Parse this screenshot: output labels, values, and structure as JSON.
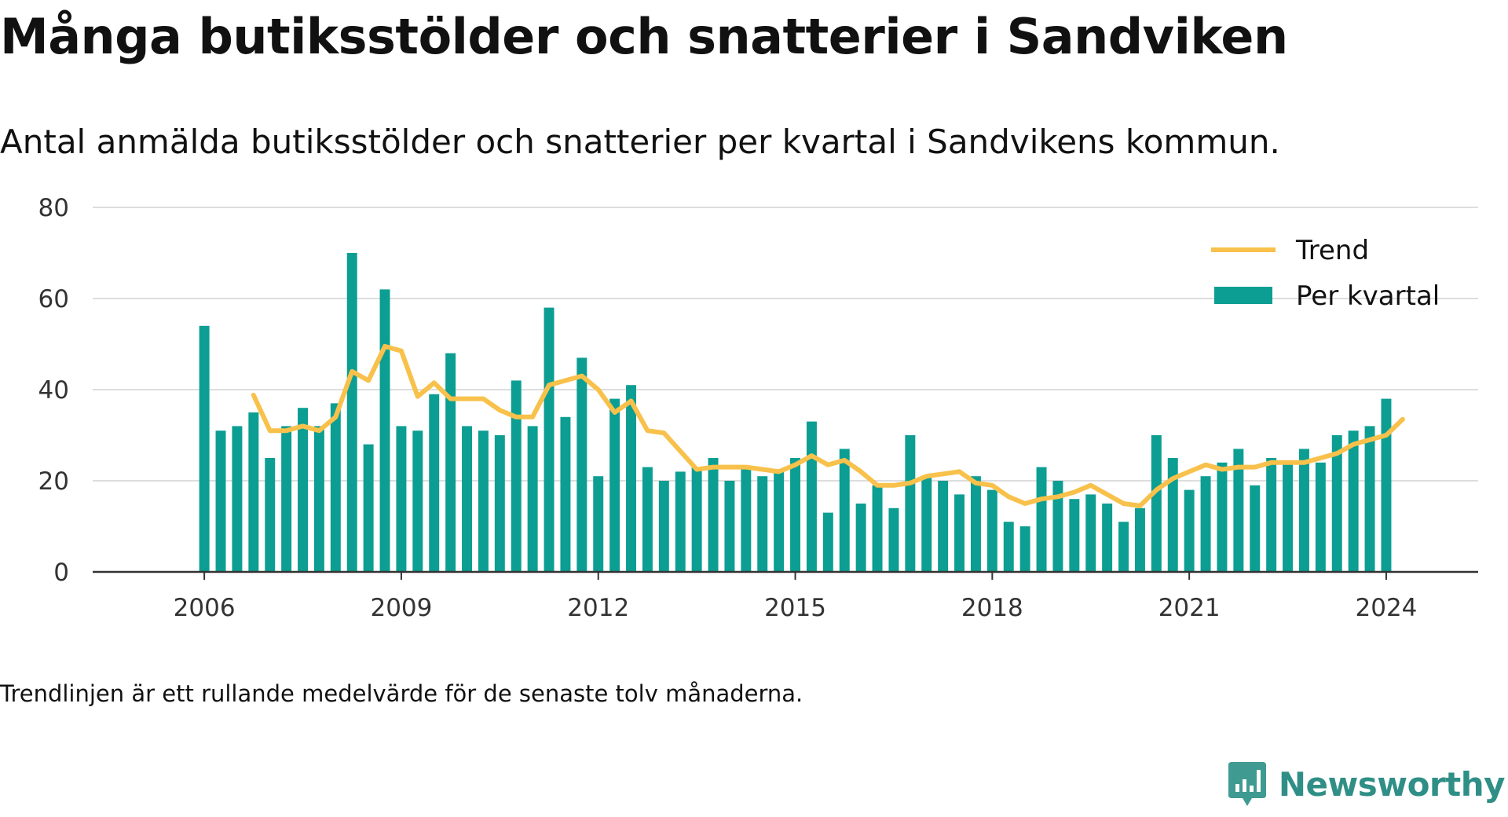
{
  "chart_data": {
    "type": "bar",
    "title": "Många butiksstölder och snatterier i Sandviken",
    "subtitle": "Antal anmälda butiksstölder och snatterier per kvartal i Sandvikens kommun.",
    "note": "Trendlinjen är ett rullande medelvärde för de senaste tolv månaderna.",
    "ylim": [
      0,
      80
    ],
    "yticks": [
      0,
      20,
      40,
      60,
      80
    ],
    "xlim": [
      2004.3,
      2025.4
    ],
    "xticks": [
      2006,
      2009,
      2012,
      2015,
      2018,
      2021,
      2024
    ],
    "grid": true,
    "legend_position": "top-right",
    "colors": {
      "bars": "#0c9e92",
      "trend": "#f8c14b",
      "grid": "#dddddd",
      "axis": "#333333"
    },
    "series": [
      {
        "name": "Per kvartal",
        "kind": "bar",
        "x_start": 2006.0,
        "x_step": 0.25,
        "values": [
          54,
          31,
          32,
          35,
          25,
          32,
          36,
          32,
          37,
          70,
          28,
          62,
          32,
          31,
          39,
          48,
          32,
          31,
          30,
          42,
          32,
          58,
          34,
          47,
          21,
          38,
          41,
          23,
          20,
          22,
          23,
          25,
          20,
          23,
          21,
          22,
          25,
          33,
          13,
          27,
          15,
          19,
          14,
          30,
          21,
          20,
          17,
          21,
          18,
          11,
          10,
          23,
          20,
          16,
          17,
          15,
          11,
          14,
          30,
          25,
          18,
          21,
          24,
          27,
          19,
          25,
          24,
          27,
          24,
          30,
          31,
          32,
          38
        ]
      },
      {
        "name": "Trend",
        "kind": "line",
        "x_start": 2006.75,
        "x_step": 0.25,
        "values": [
          38.8,
          31,
          31,
          32,
          31,
          34,
          44,
          42,
          49.5,
          48.5,
          38.5,
          41.5,
          38,
          38,
          38,
          35.5,
          34,
          34,
          41,
          42,
          43,
          40,
          35,
          37.5,
          31,
          30.5,
          26.5,
          22.5,
          23,
          23,
          23,
          22.5,
          22,
          23.5,
          25.5,
          23.5,
          24.5,
          22,
          19,
          19,
          19.5,
          21,
          21.5,
          22,
          19.5,
          19,
          16.5,
          15,
          16,
          16.5,
          17.5,
          19,
          17,
          15,
          14.5,
          18,
          20.5,
          22,
          23.5,
          22.5,
          23,
          23,
          24,
          24,
          24,
          25,
          26,
          28,
          29,
          30,
          33.5
        ]
      }
    ]
  },
  "branding": {
    "name": "Newsworthy",
    "icon": "newsworthy-logo-icon"
  }
}
